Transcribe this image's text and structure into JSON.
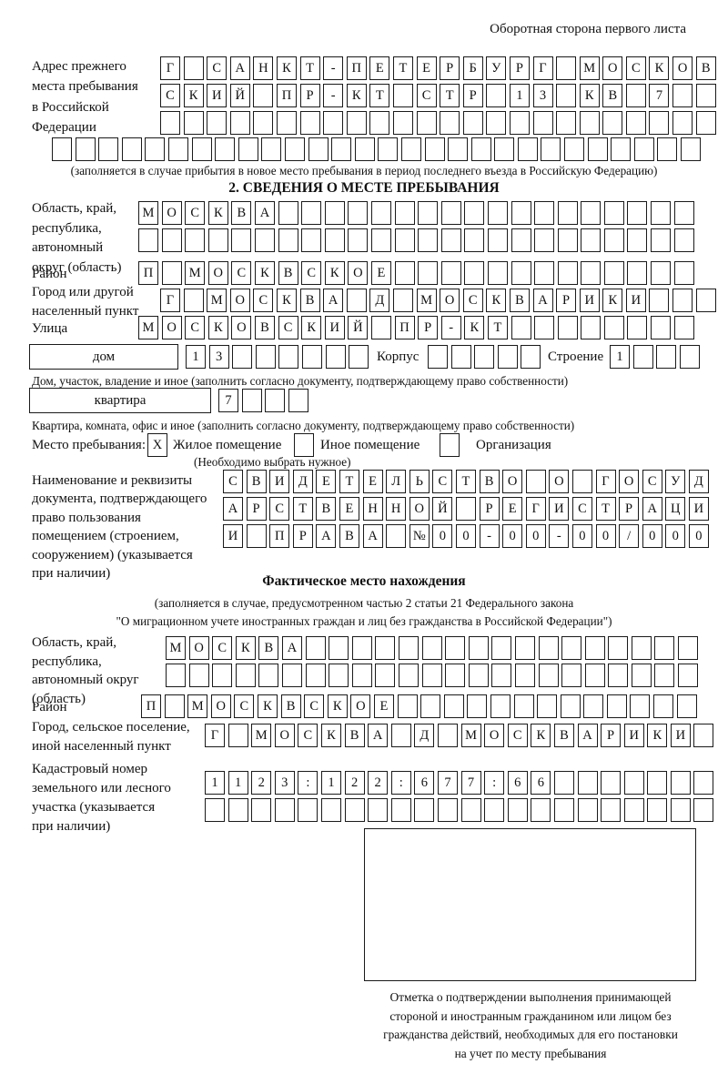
{
  "page": {
    "top_note": "Оборотная сторона первого листа"
  },
  "prev_address": {
    "label_lines": [
      "Адрес прежнего",
      "места пребывания",
      "в Российской",
      "Федерации"
    ],
    "row1": {
      "text": "Г САНКТ-ПЕТЕРБУРГ МОСКОВ",
      "len": 24
    },
    "row2": {
      "text": "СКИЙ ПР-КТ СТР 13 КВ 7",
      "len": 24
    },
    "row3": {
      "text": "",
      "len": 24
    },
    "row4": {
      "text": "",
      "len": 28
    },
    "caption": "(заполняется в случае прибытия в новое место пребывания в период последнего въезда в Российскую Федерацию)"
  },
  "section2": {
    "heading": "2. СВЕДЕНИЯ О МЕСТЕ ПРЕБЫВАНИЯ",
    "oblast": {
      "label_lines": [
        "Область, край,",
        "республика,",
        "автономный",
        "округ (область)"
      ],
      "row1": {
        "text": "МОСКВА",
        "len": 24
      },
      "row2": {
        "text": "",
        "len": 24
      }
    },
    "raion": {
      "label": "Район",
      "row": {
        "text": "П МОСКВСКОЕ",
        "len": 24
      }
    },
    "gorod": {
      "label_lines": [
        "Город или другой",
        "населенный пункт"
      ],
      "row": {
        "text": "Г МОСКВА Д МОСКВАРИКИ",
        "len": 24
      }
    },
    "ulitsa": {
      "label": "Улица",
      "row": {
        "text": "МОСКОВСКИЙ ПР-КТ",
        "len": 24
      }
    },
    "dom": {
      "box_label": "дом",
      "cells": {
        "text": "13",
        "len": 8
      },
      "korpus_label": "Корпус",
      "korpus_cells": {
        "text": "",
        "len": 5
      },
      "stroenie_label": "Строение",
      "stroenie_cells": {
        "text": "1",
        "len": 4
      },
      "caption": "Дом, участок, владение и иное (заполнить согласно документу, подтверждающему право собственности)"
    },
    "kvartira": {
      "box_label": "квартира",
      "cells": {
        "text": "7",
        "len": 4
      },
      "caption": "Квартира, комната, офис и иное (заполнить согласно документу, подтверждающему право собственности)"
    },
    "mesto": {
      "label": "Место пребывания:",
      "options": [
        {
          "label": "Жилое помещение",
          "checked": "X"
        },
        {
          "label": "Иное помещение",
          "checked": ""
        },
        {
          "label": "Организация",
          "checked": ""
        }
      ],
      "note": "(Необходимо выбрать нужное)"
    },
    "doc": {
      "label_lines": [
        "Наименование и реквизиты",
        "документа, подтверждающего",
        "право пользования",
        "помещением (строением,",
        "сооружением) (указывается",
        "при наличии)"
      ],
      "row1": {
        "text": "СВИДЕТЕЛЬСТВО О ГОСУД",
        "len": 21
      },
      "row2": {
        "text": "АРСТВЕННОЙ РЕГИСТРАЦИ",
        "len": 21
      },
      "row3": {
        "text": "И ПРАВА №00-00-00/000",
        "len": 21
      }
    }
  },
  "fact": {
    "heading": "Фактическое место нахождения",
    "caption_line1": "(заполняется в случае, предусмотренном частью 2 статьи 21 Федерального закона",
    "caption_line2": "\"О миграционном учете иностранных граждан и лиц без гражданства в Российской Федерации\")",
    "oblast": {
      "label_lines": [
        "Область, край,",
        "республика,",
        "автономный округ",
        "(область)"
      ],
      "row1": {
        "text": "МОСКВА",
        "len": 23
      },
      "row2": {
        "text": "",
        "len": 23
      }
    },
    "raion": {
      "label": "Район",
      "row": {
        "text": "П МОСКВСКОЕ",
        "len": 24
      }
    },
    "gorod": {
      "label_lines": [
        "Город, сельское поселение,",
        "иной населенный пункт"
      ],
      "row": {
        "text": "Г МОСКВА Д МОСКВАРИКИ",
        "len": 22
      }
    },
    "kadastr": {
      "label_lines": [
        "Кадастровый номер",
        "земельного или лесного",
        "участка (указывается",
        "при наличии)"
      ],
      "row1": {
        "text": "1123:122:677:66",
        "len": 22
      },
      "row2": {
        "text": "",
        "len": 22
      }
    },
    "mark_caption_lines": [
      "Отметка о подтверждении выполнения принимающей",
      "стороной и иностранным гражданином или лицом без",
      "гражданства действий, необходимых для его постановки",
      "на учет по месту пребывания"
    ]
  }
}
